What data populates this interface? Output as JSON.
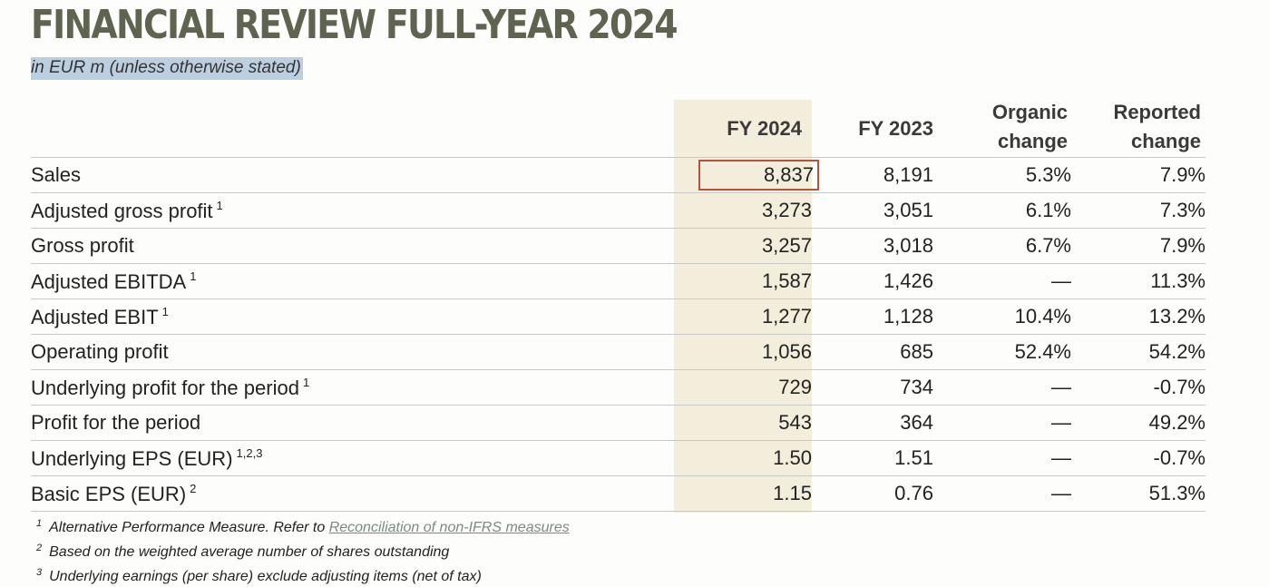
{
  "title": "FINANCIAL REVIEW FULL-YEAR 2024",
  "subtitle": "in EUR m (unless otherwise stated)",
  "colors": {
    "title": "#5f6450",
    "fy2024_shade": "#f3eedb",
    "sales_box": "#b5533c",
    "subtitle_highlight": "#bccfe1"
  },
  "columns": {
    "fy2024": "FY 2024",
    "fy2023": "FY 2023",
    "organic_line1": "Organic",
    "organic_line2": "change",
    "reported_line1": "Reported",
    "reported_line2": "change"
  },
  "rows": [
    {
      "label": "Sales",
      "note": "",
      "fy2024": "8,837",
      "fy2023": "8,191",
      "organic": "5.3%",
      "reported": "7.9%"
    },
    {
      "label": "Adjusted gross profit",
      "note": "1",
      "fy2024": "3,273",
      "fy2023": "3,051",
      "organic": "6.1%",
      "reported": "7.3%"
    },
    {
      "label": "Gross profit",
      "note": "",
      "fy2024": "3,257",
      "fy2023": "3,018",
      "organic": "6.7%",
      "reported": "7.9%"
    },
    {
      "label": "Adjusted EBITDA",
      "note": "1",
      "fy2024": "1,587",
      "fy2023": "1,426",
      "organic": "—",
      "reported": "11.3%"
    },
    {
      "label": "Adjusted EBIT",
      "note": "1",
      "fy2024": "1,277",
      "fy2023": "1,128",
      "organic": "10.4%",
      "reported": "13.2%"
    },
    {
      "label": "Operating profit",
      "note": "",
      "fy2024": "1,056",
      "fy2023": "685",
      "organic": "52.4%",
      "reported": "54.2%"
    },
    {
      "label": "Underlying profit for the period",
      "note": "1",
      "fy2024": "729",
      "fy2023": "734",
      "organic": "—",
      "reported": "-0.7%"
    },
    {
      "label": "Profit for the period",
      "note": "",
      "fy2024": "543",
      "fy2023": "364",
      "organic": "—",
      "reported": "49.2%"
    },
    {
      "label": "Underlying EPS (EUR)",
      "note": "1,2,3",
      "fy2024": "1.50",
      "fy2023": "1.51",
      "organic": "—",
      "reported": "-0.7%"
    },
    {
      "label": "Basic EPS (EUR)",
      "note": "2",
      "fy2024": "1.15",
      "fy2023": "0.76",
      "organic": "—",
      "reported": "51.3%"
    }
  ],
  "footnotes": [
    {
      "mark": "1",
      "text": "Alternative Performance Measure. Refer to ",
      "link": "Reconciliation of non-IFRS measures"
    },
    {
      "mark": "2",
      "text": "Based on the weighted average number of shares outstanding",
      "link": ""
    },
    {
      "mark": "3",
      "text": "Underlying earnings (per share) exclude adjusting items (net of tax)",
      "link": ""
    }
  ]
}
